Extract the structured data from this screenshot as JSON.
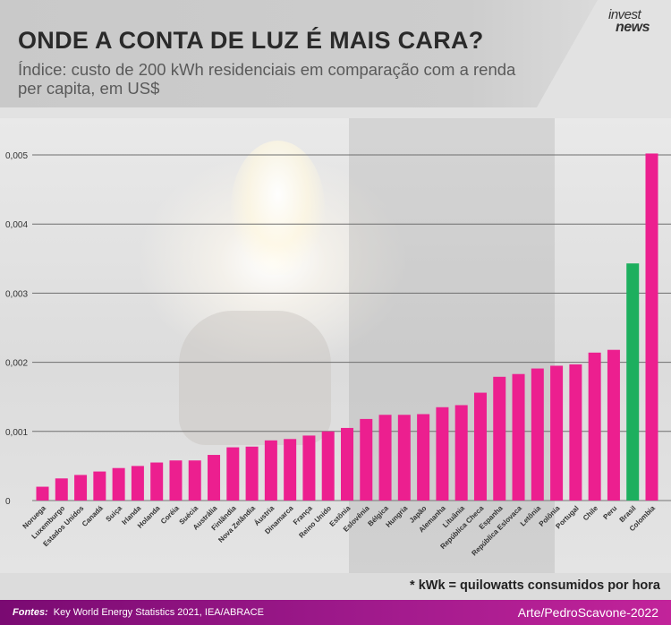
{
  "header": {
    "title": "ONDE A CONTA DE LUZ É MAIS CARA?",
    "subtitle": "Índice: custo de 200 kWh residenciais em comparação com a renda per capita, em US$",
    "logo_line1": "invest",
    "logo_line2": "news"
  },
  "chart_data": {
    "type": "bar",
    "title": "ONDE A CONTA DE LUZ É MAIS CARA?",
    "ylabel": "",
    "xlabel": "",
    "ylim": [
      0,
      0.0052
    ],
    "yticks": [
      0,
      0.001,
      0.002,
      0.003,
      0.004,
      0.005
    ],
    "ytick_labels": [
      "0",
      "0,001",
      "0,002",
      "0,003",
      "0,004",
      "0,005"
    ],
    "grid": true,
    "colors": {
      "default": "#ec1f8f",
      "highlight": "#1daf5e"
    },
    "highlight": "Brasil",
    "categories": [
      "Noruega",
      "Luxemburgo",
      "Estados Unidos",
      "Canadá",
      "Suiça",
      "Irlanda",
      "Holanda",
      "Coréia",
      "Suécia",
      "Austrália",
      "Finlândia",
      "Nova Zelândia",
      "Áustria",
      "Dinamarca",
      "França",
      "Reino Unido",
      "Estônia",
      "Eslovênia",
      "Bélgica",
      "Hungria",
      "Japão",
      "Alemanha",
      "Lituânia",
      "República Checa",
      "Espanha",
      "República Eslovaca",
      "Letônia",
      "Polônia",
      "Portugal",
      "Chile",
      "Peru",
      "Brasil",
      "Colombia"
    ],
    "values": [
      0.0002,
      0.00032,
      0.00037,
      0.00042,
      0.00047,
      0.0005,
      0.00055,
      0.00058,
      0.00058,
      0.00066,
      0.00077,
      0.00078,
      0.00087,
      0.00089,
      0.00094,
      0.001,
      0.00105,
      0.00118,
      0.00124,
      0.00124,
      0.00125,
      0.00135,
      0.00138,
      0.00156,
      0.00179,
      0.00183,
      0.00191,
      0.00195,
      0.00197,
      0.00214,
      0.00218,
      0.00343,
      0.00502
    ]
  },
  "note": "* kWk = quilowatts consumidos por hora",
  "footer": {
    "sources_label": "Fontes:",
    "sources_text": "Key World Energy Statistics 2021, IEA/ABRACE",
    "credit": "Arte/PedroScavone-2022"
  }
}
